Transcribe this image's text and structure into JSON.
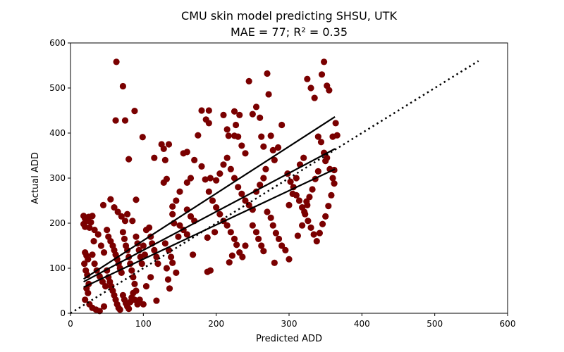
{
  "chart_data": {
    "type": "scatter",
    "title": "CMU skin model predicting SHSU, UTK",
    "subtitle": "MAE = 77; R² = 0.35",
    "xlabel": "Predicted ADD",
    "ylabel": "Actual ADD",
    "xlim": [
      0,
      600
    ],
    "ylim": [
      0,
      600
    ],
    "xticks": [
      "0",
      "100",
      "200",
      "300",
      "400",
      "500",
      "600"
    ],
    "yticks": [
      "0",
      "100",
      "200",
      "300",
      "400",
      "500",
      "600"
    ],
    "grid": false,
    "marker_color": "#7a0000",
    "line_color": "#000000",
    "identity_line": {
      "style": "dotted",
      "x": [
        0,
        560
      ],
      "y": [
        0,
        560
      ]
    },
    "fit_lines": [
      {
        "x": [
          18,
          363
        ],
        "y": [
          76,
          436
        ]
      },
      {
        "x": [
          18,
          363
        ],
        "y": [
          70,
          365
        ]
      },
      {
        "x": [
          18,
          363
        ],
        "y": [
          58,
          320
        ]
      }
    ],
    "points": [
      [
        63,
        558
      ],
      [
        72,
        504
      ],
      [
        88,
        449
      ],
      [
        62,
        428
      ],
      [
        75,
        428
      ],
      [
        99,
        391
      ],
      [
        80,
        342
      ],
      [
        18,
        216
      ],
      [
        20,
        210
      ],
      [
        22,
        205
      ],
      [
        25,
        214
      ],
      [
        30,
        216
      ],
      [
        18,
        198
      ],
      [
        20,
        192
      ],
      [
        26,
        190
      ],
      [
        33,
        185
      ],
      [
        28,
        202
      ],
      [
        20,
        135
      ],
      [
        22,
        128
      ],
      [
        24,
        120
      ],
      [
        19,
        110
      ],
      [
        21,
        95
      ],
      [
        23,
        85
      ],
      [
        25,
        65
      ],
      [
        22,
        55
      ],
      [
        24,
        45
      ],
      [
        20,
        30
      ],
      [
        26,
        20
      ],
      [
        30,
        12
      ],
      [
        35,
        8
      ],
      [
        40,
        5
      ],
      [
        46,
        15
      ],
      [
        30,
        130
      ],
      [
        33,
        110
      ],
      [
        36,
        95
      ],
      [
        40,
        82
      ],
      [
        44,
        70
      ],
      [
        48,
        60
      ],
      [
        32,
        160
      ],
      [
        38,
        175
      ],
      [
        42,
        150
      ],
      [
        46,
        135
      ],
      [
        50,
        185
      ],
      [
        52,
        170
      ],
      [
        55,
        160
      ],
      [
        58,
        150
      ],
      [
        60,
        140
      ],
      [
        62,
        130
      ],
      [
        64,
        120
      ],
      [
        66,
        110
      ],
      [
        68,
        100
      ],
      [
        70,
        90
      ],
      [
        50,
        95
      ],
      [
        52,
        80
      ],
      [
        54,
        70
      ],
      [
        56,
        60
      ],
      [
        58,
        50
      ],
      [
        60,
        40
      ],
      [
        62,
        30
      ],
      [
        64,
        20
      ],
      [
        66,
        12
      ],
      [
        68,
        8
      ],
      [
        45,
        240
      ],
      [
        55,
        253
      ],
      [
        60,
        235
      ],
      [
        65,
        225
      ],
      [
        70,
        215
      ],
      [
        75,
        205
      ],
      [
        78,
        220
      ],
      [
        85,
        205
      ],
      [
        90,
        252
      ],
      [
        72,
        180
      ],
      [
        74,
        165
      ],
      [
        76,
        150
      ],
      [
        78,
        140
      ],
      [
        80,
        125
      ],
      [
        82,
        110
      ],
      [
        84,
        95
      ],
      [
        86,
        80
      ],
      [
        88,
        65
      ],
      [
        90,
        50
      ],
      [
        72,
        40
      ],
      [
        74,
        30
      ],
      [
        76,
        22
      ],
      [
        78,
        15
      ],
      [
        80,
        10
      ],
      [
        82,
        25
      ],
      [
        84,
        35
      ],
      [
        86,
        45
      ],
      [
        88,
        30
      ],
      [
        92,
        20
      ],
      [
        90,
        170
      ],
      [
        92,
        155
      ],
      [
        94,
        140
      ],
      [
        96,
        125
      ],
      [
        98,
        110
      ],
      [
        100,
        150
      ],
      [
        102,
        130
      ],
      [
        104,
        185
      ],
      [
        108,
        190
      ],
      [
        110,
        170
      ],
      [
        112,
        155
      ],
      [
        115,
        140
      ],
      [
        118,
        125
      ],
      [
        120,
        110
      ],
      [
        95,
        30
      ],
      [
        100,
        20
      ],
      [
        104,
        60
      ],
      [
        110,
        80
      ],
      [
        118,
        28
      ],
      [
        115,
        345
      ],
      [
        125,
        375
      ],
      [
        128,
        365
      ],
      [
        135,
        375
      ],
      [
        130,
        340
      ],
      [
        132,
        298
      ],
      [
        128,
        290
      ],
      [
        140,
        237
      ],
      [
        145,
        250
      ],
      [
        150,
        270
      ],
      [
        155,
        355
      ],
      [
        160,
        358
      ],
      [
        160,
        290
      ],
      [
        165,
        300
      ],
      [
        170,
        340
      ],
      [
        175,
        395
      ],
      [
        140,
        220
      ],
      [
        142,
        200
      ],
      [
        150,
        195
      ],
      [
        155,
        185
      ],
      [
        160,
        230
      ],
      [
        165,
        215
      ],
      [
        170,
        205
      ],
      [
        148,
        170
      ],
      [
        160,
        175
      ],
      [
        130,
        155
      ],
      [
        135,
        140
      ],
      [
        138,
        125
      ],
      [
        140,
        112
      ],
      [
        132,
        100
      ],
      [
        134,
        75
      ],
      [
        136,
        55
      ],
      [
        145,
        90
      ],
      [
        168,
        130
      ],
      [
        180,
        450
      ],
      [
        190,
        450
      ],
      [
        186,
        430
      ],
      [
        190,
        422
      ],
      [
        210,
        440
      ],
      [
        215,
        408
      ],
      [
        217,
        394
      ],
      [
        225,
        448
      ],
      [
        232,
        440
      ],
      [
        227,
        418
      ],
      [
        230,
        392
      ],
      [
        235,
        372
      ],
      [
        225,
        394
      ],
      [
        240,
        355
      ],
      [
        245,
        515
      ],
      [
        250,
        442
      ],
      [
        255,
        458
      ],
      [
        260,
        434
      ],
      [
        262,
        392
      ],
      [
        265,
        370
      ],
      [
        270,
        532
      ],
      [
        272,
        486
      ],
      [
        275,
        394
      ],
      [
        278,
        362
      ],
      [
        280,
        340
      ],
      [
        285,
        368
      ],
      [
        290,
        418
      ],
      [
        180,
        326
      ],
      [
        185,
        297
      ],
      [
        192,
        300
      ],
      [
        200,
        295
      ],
      [
        205,
        310
      ],
      [
        210,
        330
      ],
      [
        215,
        345
      ],
      [
        220,
        320
      ],
      [
        225,
        300
      ],
      [
        230,
        280
      ],
      [
        235,
        265
      ],
      [
        240,
        250
      ],
      [
        245,
        240
      ],
      [
        250,
        230
      ],
      [
        255,
        270
      ],
      [
        260,
        285
      ],
      [
        265,
        300
      ],
      [
        268,
        320
      ],
      [
        190,
        270
      ],
      [
        195,
        250
      ],
      [
        200,
        235
      ],
      [
        205,
        220
      ],
      [
        210,
        205
      ],
      [
        198,
        180
      ],
      [
        188,
        168
      ],
      [
        192,
        95
      ],
      [
        188,
        92
      ],
      [
        215,
        195
      ],
      [
        220,
        180
      ],
      [
        225,
        165
      ],
      [
        228,
        152
      ],
      [
        232,
        135
      ],
      [
        236,
        125
      ],
      [
        240,
        150
      ],
      [
        222,
        128
      ],
      [
        218,
        113
      ],
      [
        250,
        195
      ],
      [
        255,
        180
      ],
      [
        258,
        165
      ],
      [
        262,
        150
      ],
      [
        265,
        138
      ],
      [
        270,
        225
      ],
      [
        275,
        212
      ],
      [
        278,
        195
      ],
      [
        282,
        178
      ],
      [
        286,
        165
      ],
      [
        290,
        150
      ],
      [
        295,
        140
      ],
      [
        300,
        240
      ],
      [
        305,
        265
      ],
      [
        310,
        300
      ],
      [
        315,
        330
      ],
      [
        320,
        345
      ],
      [
        325,
        520
      ],
      [
        330,
        500
      ],
      [
        335,
        478
      ],
      [
        340,
        392
      ],
      [
        345,
        530
      ],
      [
        348,
        558
      ],
      [
        352,
        505
      ],
      [
        355,
        495
      ],
      [
        360,
        392
      ],
      [
        362,
        318
      ],
      [
        298,
        310
      ],
      [
        302,
        292
      ],
      [
        306,
        280
      ],
      [
        310,
        262
      ],
      [
        314,
        250
      ],
      [
        318,
        235
      ],
      [
        322,
        220
      ],
      [
        326,
        205
      ],
      [
        330,
        190
      ],
      [
        334,
        175
      ],
      [
        338,
        160
      ],
      [
        300,
        120
      ],
      [
        280,
        112
      ],
      [
        312,
        172
      ],
      [
        318,
        195
      ],
      [
        324,
        248
      ],
      [
        344,
        380
      ],
      [
        348,
        356
      ],
      [
        352,
        345
      ],
      [
        356,
        320
      ],
      [
        360,
        300
      ],
      [
        362,
        288
      ],
      [
        358,
        262
      ],
      [
        354,
        238
      ],
      [
        350,
        215
      ],
      [
        346,
        198
      ],
      [
        342,
        178
      ],
      [
        364,
        422
      ],
      [
        366,
        395
      ],
      [
        350,
        338
      ],
      [
        340,
        315
      ],
      [
        336,
        298
      ],
      [
        332,
        275
      ],
      [
        328,
        258
      ],
      [
        325,
        240
      ],
      [
        321,
        225
      ]
    ]
  }
}
